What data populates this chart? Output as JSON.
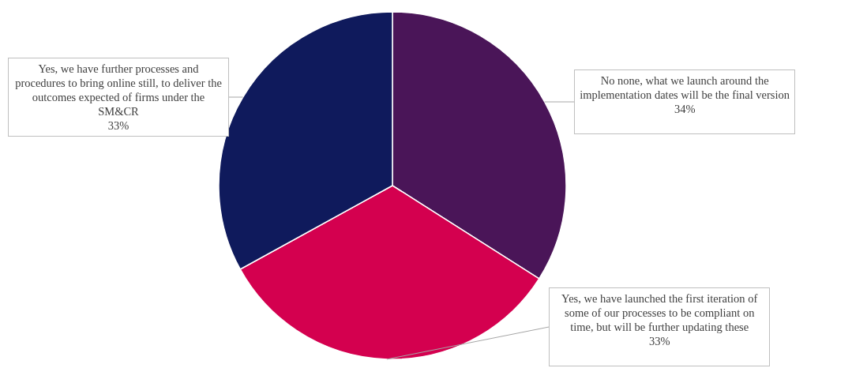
{
  "chart_data": {
    "type": "pie",
    "categories": [
      "No none, what we launch around the implementation dates will be the final version",
      "Yes, we have launched the first iteration of some of our processes to be compliant on time, but will be further updating these",
      "Yes, we have further processes and procedures to bring online still, to deliver the outcomes expected of firms under the SM&CR"
    ],
    "values": [
      34,
      33,
      33
    ],
    "colors": [
      "#4a1558",
      "#d4004f",
      "#0f1a5c"
    ],
    "value_labels": [
      "34%",
      "33%",
      "33%"
    ],
    "legend": false
  }
}
